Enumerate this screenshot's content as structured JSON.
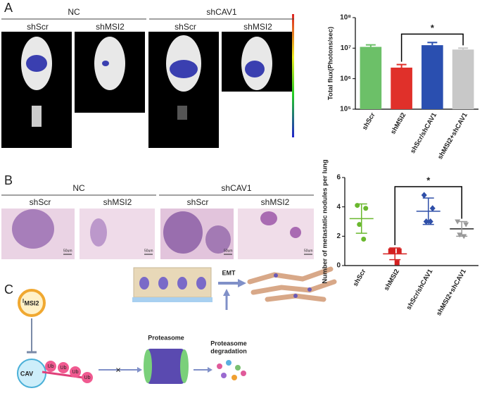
{
  "panel_a": {
    "label": "A",
    "groups": [
      {
        "title": "NC",
        "columns": [
          "shScr",
          "shMSI2"
        ]
      },
      {
        "title": "shCAV1",
        "columns": [
          "shScr",
          "shMSI2"
        ]
      }
    ]
  },
  "panel_b": {
    "label": "B",
    "groups": [
      {
        "title": "NC",
        "columns": [
          "shScr",
          "shMSI2"
        ]
      },
      {
        "title": "shCAV1",
        "columns": [
          "shScr",
          "shMSI2"
        ]
      }
    ],
    "scale_bars": [
      "50um",
      "50um",
      "50um",
      "50um"
    ]
  },
  "panel_c": {
    "label": "C",
    "msi2": "MSI2",
    "cav": "CAV",
    "ub": [
      "Ub",
      "Ub",
      "Ub",
      "Ub"
    ],
    "proteasome": "Proteasome",
    "degradation_lines": [
      "Proteasome",
      "degradation"
    ],
    "emt": "EMT"
  },
  "chart_data": [
    {
      "type": "bar",
      "ylabel": "Total flux(Photons/sec)",
      "log_scale": true,
      "categories": [
        "shScr",
        "shMSI2",
        "shScr/shCAV1",
        "shMSI2+shCAV1"
      ],
      "values": [
        11000000,
        2300000,
        12500000,
        9000000
      ],
      "errors": [
        1800000,
        600000,
        2800000,
        1000000
      ],
      "colors": [
        "#6cc068",
        "#e0302a",
        "#2a4fb0",
        "#c8c8c8"
      ],
      "ylim": [
        100000,
        100000000
      ],
      "yticks": [
        {
          "value": 100000,
          "label": "10⁵"
        },
        {
          "value": 1000000,
          "label": "10⁶"
        },
        {
          "value": 10000000,
          "label": "10⁷"
        },
        {
          "value": 100000000,
          "label": "10⁸"
        }
      ],
      "significance": {
        "text": "*",
        "between": [
          "shMSI2",
          "shMSI2+shCAV1"
        ]
      }
    },
    {
      "type": "scatter",
      "ylabel": "Number of metastatic nodules per lung",
      "categories": [
        "shScr",
        "shMSI2",
        "shScr/shCAV1",
        "shMSI2+shCAV1"
      ],
      "series": [
        {
          "name": "shScr",
          "color": "#6ab82e",
          "marker": "circle",
          "values": [
            4.1,
            3.9,
            2.8,
            1.8
          ],
          "mean": 3.2,
          "error": 1.0
        },
        {
          "name": "shMSI2",
          "color": "#d42020",
          "marker": "square",
          "values": [
            1.0,
            1.0,
            1.0,
            0.2
          ],
          "mean": 0.8,
          "error": 0.4
        },
        {
          "name": "shScr/shCAV1",
          "color": "#2f4fa8",
          "marker": "diamond",
          "values": [
            4.8,
            3.9,
            3.0,
            3.0
          ],
          "mean": 3.7,
          "error": 0.9
        },
        {
          "name": "shMSI2+shCAV1",
          "color": "#999999",
          "marker": "triangle",
          "values": [
            3.0,
            2.8,
            2.1,
            2.0
          ],
          "mean": 2.5,
          "error": 0.5
        }
      ],
      "ylim": [
        0,
        6
      ],
      "yticks": [
        0,
        2,
        4,
        6
      ],
      "significance": {
        "text": "*",
        "between": [
          "shMSI2",
          "shMSI2+shCAV1"
        ]
      }
    }
  ]
}
